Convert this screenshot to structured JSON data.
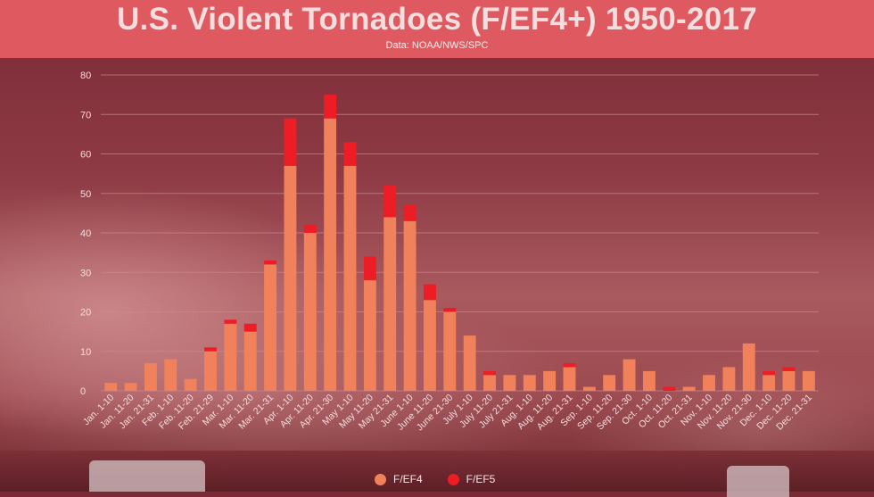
{
  "header": {
    "title": "U.S. Violent Tornadoes (F/EF4+) 1950-2017",
    "subtitle": "Data: NOAA/NWS/SPC"
  },
  "colors": {
    "header_bg": "#de5a60",
    "ef4": "#f0815a",
    "ef5": "#ee1c25",
    "gridline": "#c98a8e",
    "text": "#f4dede"
  },
  "chart_data": {
    "type": "bar",
    "stacked": true,
    "title": "U.S. Violent Tornadoes (F/EF4+) 1950-2017",
    "subtitle": "Data: NOAA/NWS/SPC",
    "xlabel": "",
    "ylabel": "",
    "ylim": [
      0,
      80
    ],
    "yticks": [
      0,
      10,
      20,
      30,
      40,
      50,
      60,
      70,
      80
    ],
    "grid": true,
    "legend_position": "bottom",
    "categories": [
      "Jan. 1-10",
      "Jan. 11-20",
      "Jan. 21-31",
      "Feb. 1-10",
      "Feb. 11-20",
      "Feb. 21-29",
      "Mar. 1-10",
      "Mar. 11-20",
      "Mar. 21-31",
      "Apr. 1-10",
      "Apr. 11-20",
      "Apr. 21-30",
      "May 1-10",
      "May 11-20",
      "May 21-31",
      "June 1-10",
      "June 11-20",
      "June 21-30",
      "July 1-10",
      "July 11-20",
      "July 21-31",
      "Aug. 1-10",
      "Aug. 11-20",
      "Aug. 21-31",
      "Sep. 1-10",
      "Sep. 11-20",
      "Sep. 21-30",
      "Oct. 1-10",
      "Oct. 11-20",
      "Oct. 21-31",
      "Nov. 1-10",
      "Nov. 11-20",
      "Nov. 21-30",
      "Dec. 1-10",
      "Dec. 11-20",
      "Dec. 21-31"
    ],
    "series": [
      {
        "name": "F/EF4",
        "values": [
          2,
          2,
          7,
          8,
          3,
          10,
          17,
          15,
          32,
          57,
          40,
          69,
          57,
          28,
          44,
          43,
          23,
          20,
          14,
          4,
          4,
          4,
          5,
          6,
          1,
          4,
          8,
          5,
          0,
          1,
          4,
          6,
          12,
          4,
          5,
          5
        ]
      },
      {
        "name": "F/EF5",
        "values": [
          0,
          0,
          0,
          0,
          0,
          1,
          1,
          2,
          1,
          12,
          2,
          6,
          6,
          6,
          8,
          4,
          4,
          1,
          0,
          1,
          0,
          0,
          0,
          1,
          0,
          0,
          0,
          0,
          1,
          0,
          0,
          0,
          0,
          1,
          1,
          0
        ]
      }
    ]
  }
}
